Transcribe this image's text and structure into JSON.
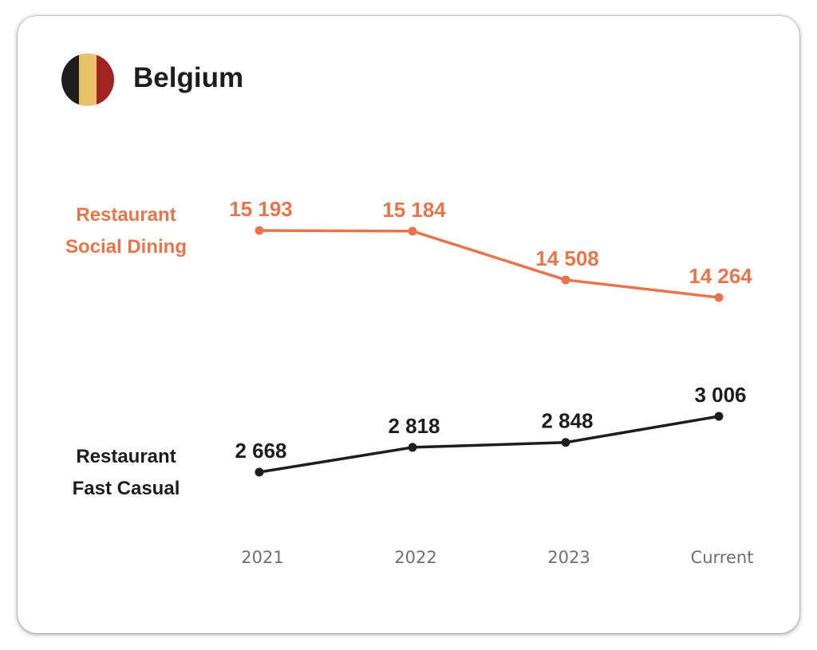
{
  "header": {
    "country": "Belgium",
    "flag_colors": [
      "#1e1e1e",
      "#e9c168",
      "#a12423"
    ]
  },
  "chart_data": {
    "type": "line",
    "categories": [
      "2021",
      "2022",
      "2023",
      "Current"
    ],
    "series": [
      {
        "name_lines": [
          "Restaurant",
          "Social Dining"
        ],
        "color": "#e8754a",
        "values": [
          15193,
          15184,
          14508,
          14264
        ],
        "labels": [
          "15 193",
          "15 184",
          "14 508",
          "14 264"
        ]
      },
      {
        "name_lines": [
          "Restaurant",
          "Fast Casual"
        ],
        "color": "#1d1d1d",
        "values": [
          2668,
          2818,
          2848,
          3006
        ],
        "labels": [
          "2 668",
          "2 818",
          "2 848",
          "3 006"
        ]
      }
    ],
    "grid": false,
    "legend": "left"
  }
}
